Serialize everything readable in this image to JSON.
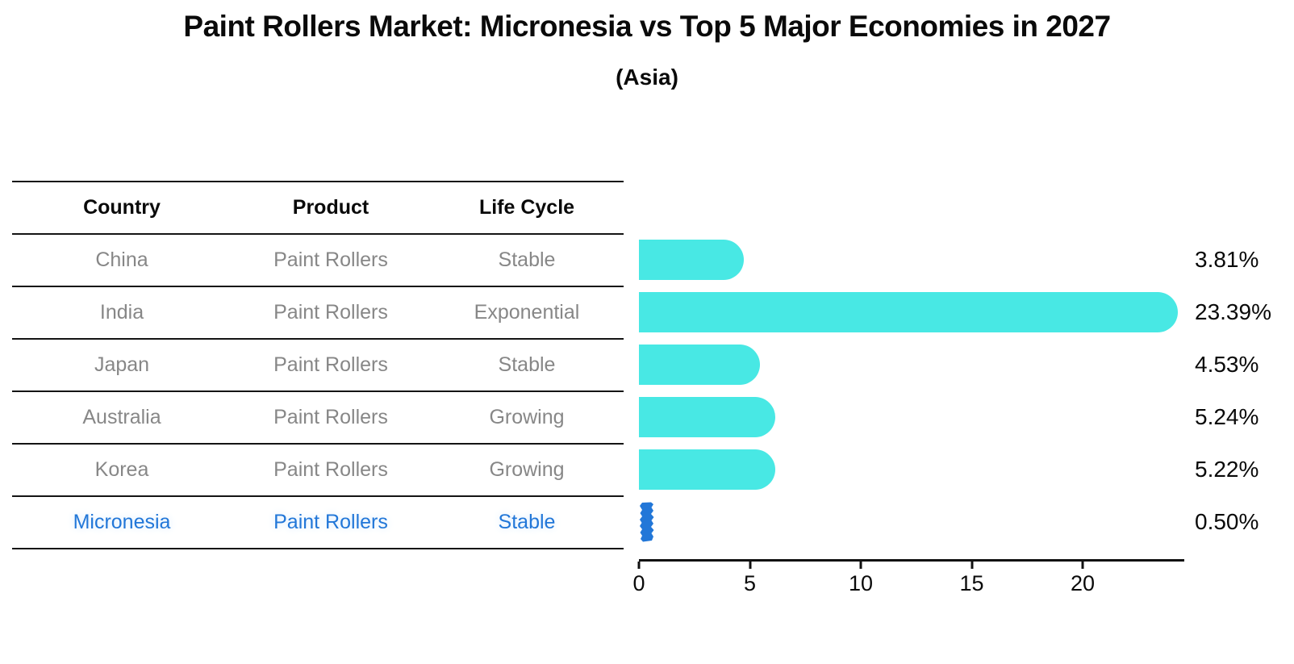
{
  "header": {
    "title": "Paint Rollers Market: Micronesia vs Top 5 Major Economies in 2027",
    "subtitle": "(Asia)"
  },
  "table": {
    "columns": [
      "Country",
      "Product",
      "Life Cycle"
    ],
    "rows": [
      {
        "country": "China",
        "product": "Paint Rollers",
        "life_cycle": "Stable"
      },
      {
        "country": "India",
        "product": "Paint Rollers",
        "life_cycle": "Exponential"
      },
      {
        "country": "Japan",
        "product": "Paint Rollers",
        "life_cycle": "Stable"
      },
      {
        "country": "Australia",
        "product": "Paint Rollers",
        "life_cycle": "Growing"
      },
      {
        "country": "Korea",
        "product": "Paint Rollers",
        "life_cycle": "Growing"
      },
      {
        "country": "Micronesia",
        "product": "Paint Rollers",
        "life_cycle": "Stable"
      }
    ],
    "highlight_row": "Micronesia"
  },
  "chart_data": {
    "type": "bar",
    "orientation": "horizontal",
    "title": "Paint Rollers Market: Micronesia vs Top 5 Major Economies in 2027",
    "subtitle": "(Asia)",
    "categories": [
      "China",
      "India",
      "Japan",
      "Australia",
      "Korea",
      "Micronesia"
    ],
    "values": [
      3.81,
      23.39,
      4.53,
      5.24,
      5.22,
      0.5
    ],
    "bar_labels": [
      "3.81%",
      "23.39%",
      "4.53%",
      "5.24%",
      "5.22%",
      "0.50%"
    ],
    "xticks": [
      0,
      5,
      10,
      15,
      20
    ],
    "xlim": [
      0,
      24.5
    ],
    "xlabel": "",
    "ylabel": "",
    "grid": false,
    "legend": false,
    "bar_color": "#48E8E4",
    "highlight_color": "#2277D8",
    "highlight_index": 5,
    "cell_text_color": "#878787",
    "axis_color": "#111111"
  }
}
